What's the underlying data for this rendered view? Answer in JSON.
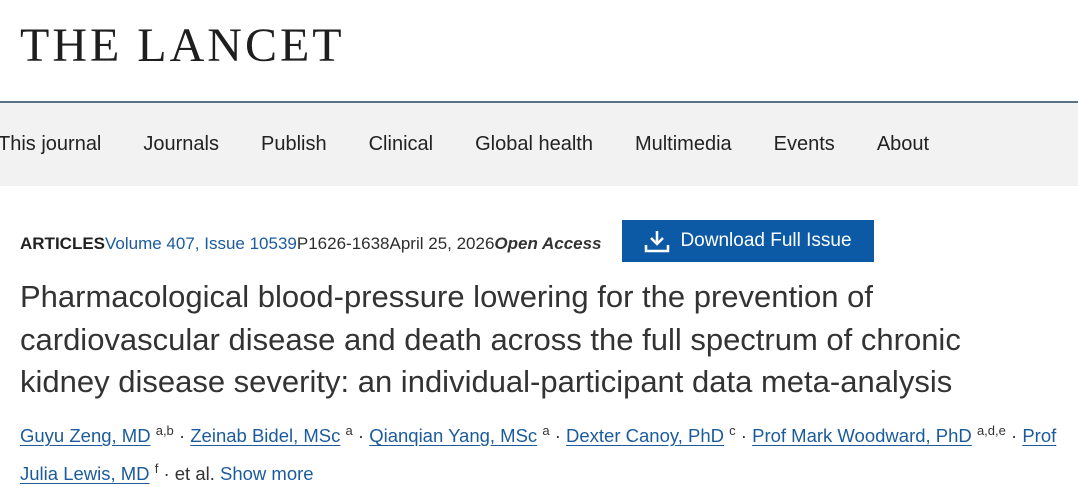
{
  "header": {
    "logo": "THE LANCET"
  },
  "nav": {
    "items": [
      "This journal",
      "Journals",
      "Publish",
      "Clinical",
      "Global health",
      "Multimedia",
      "Events",
      "About"
    ]
  },
  "article": {
    "type": "ARTICLES",
    "volume": "Volume 407, Issue 10539",
    "pages": "P1626-1638",
    "date": "April 25, 2026",
    "access": "Open Access",
    "download": "Download Full Issue",
    "title": "Pharmacological blood-pressure lowering for the prevention of cardiovascular disease and death across the full spectrum of chronic kidney disease severity: an individual-participant data meta-analysis",
    "separator": "·",
    "authors": [
      {
        "name": "Guyu Zeng, MD",
        "affil": "a,b"
      },
      {
        "name": "Zeinab Bidel, MSc",
        "affil": "a"
      },
      {
        "name": "Qianqian Yang, MSc",
        "affil": "a"
      },
      {
        "name": "Dexter Canoy, PhD",
        "affil": "c"
      },
      {
        "name": "Prof Mark Woodward, PhD",
        "affil": "a,d,e"
      },
      {
        "name": "Prof Julia Lewis, MD",
        "affil": "f"
      }
    ],
    "etal": "et al.",
    "show_more": "Show more"
  }
}
